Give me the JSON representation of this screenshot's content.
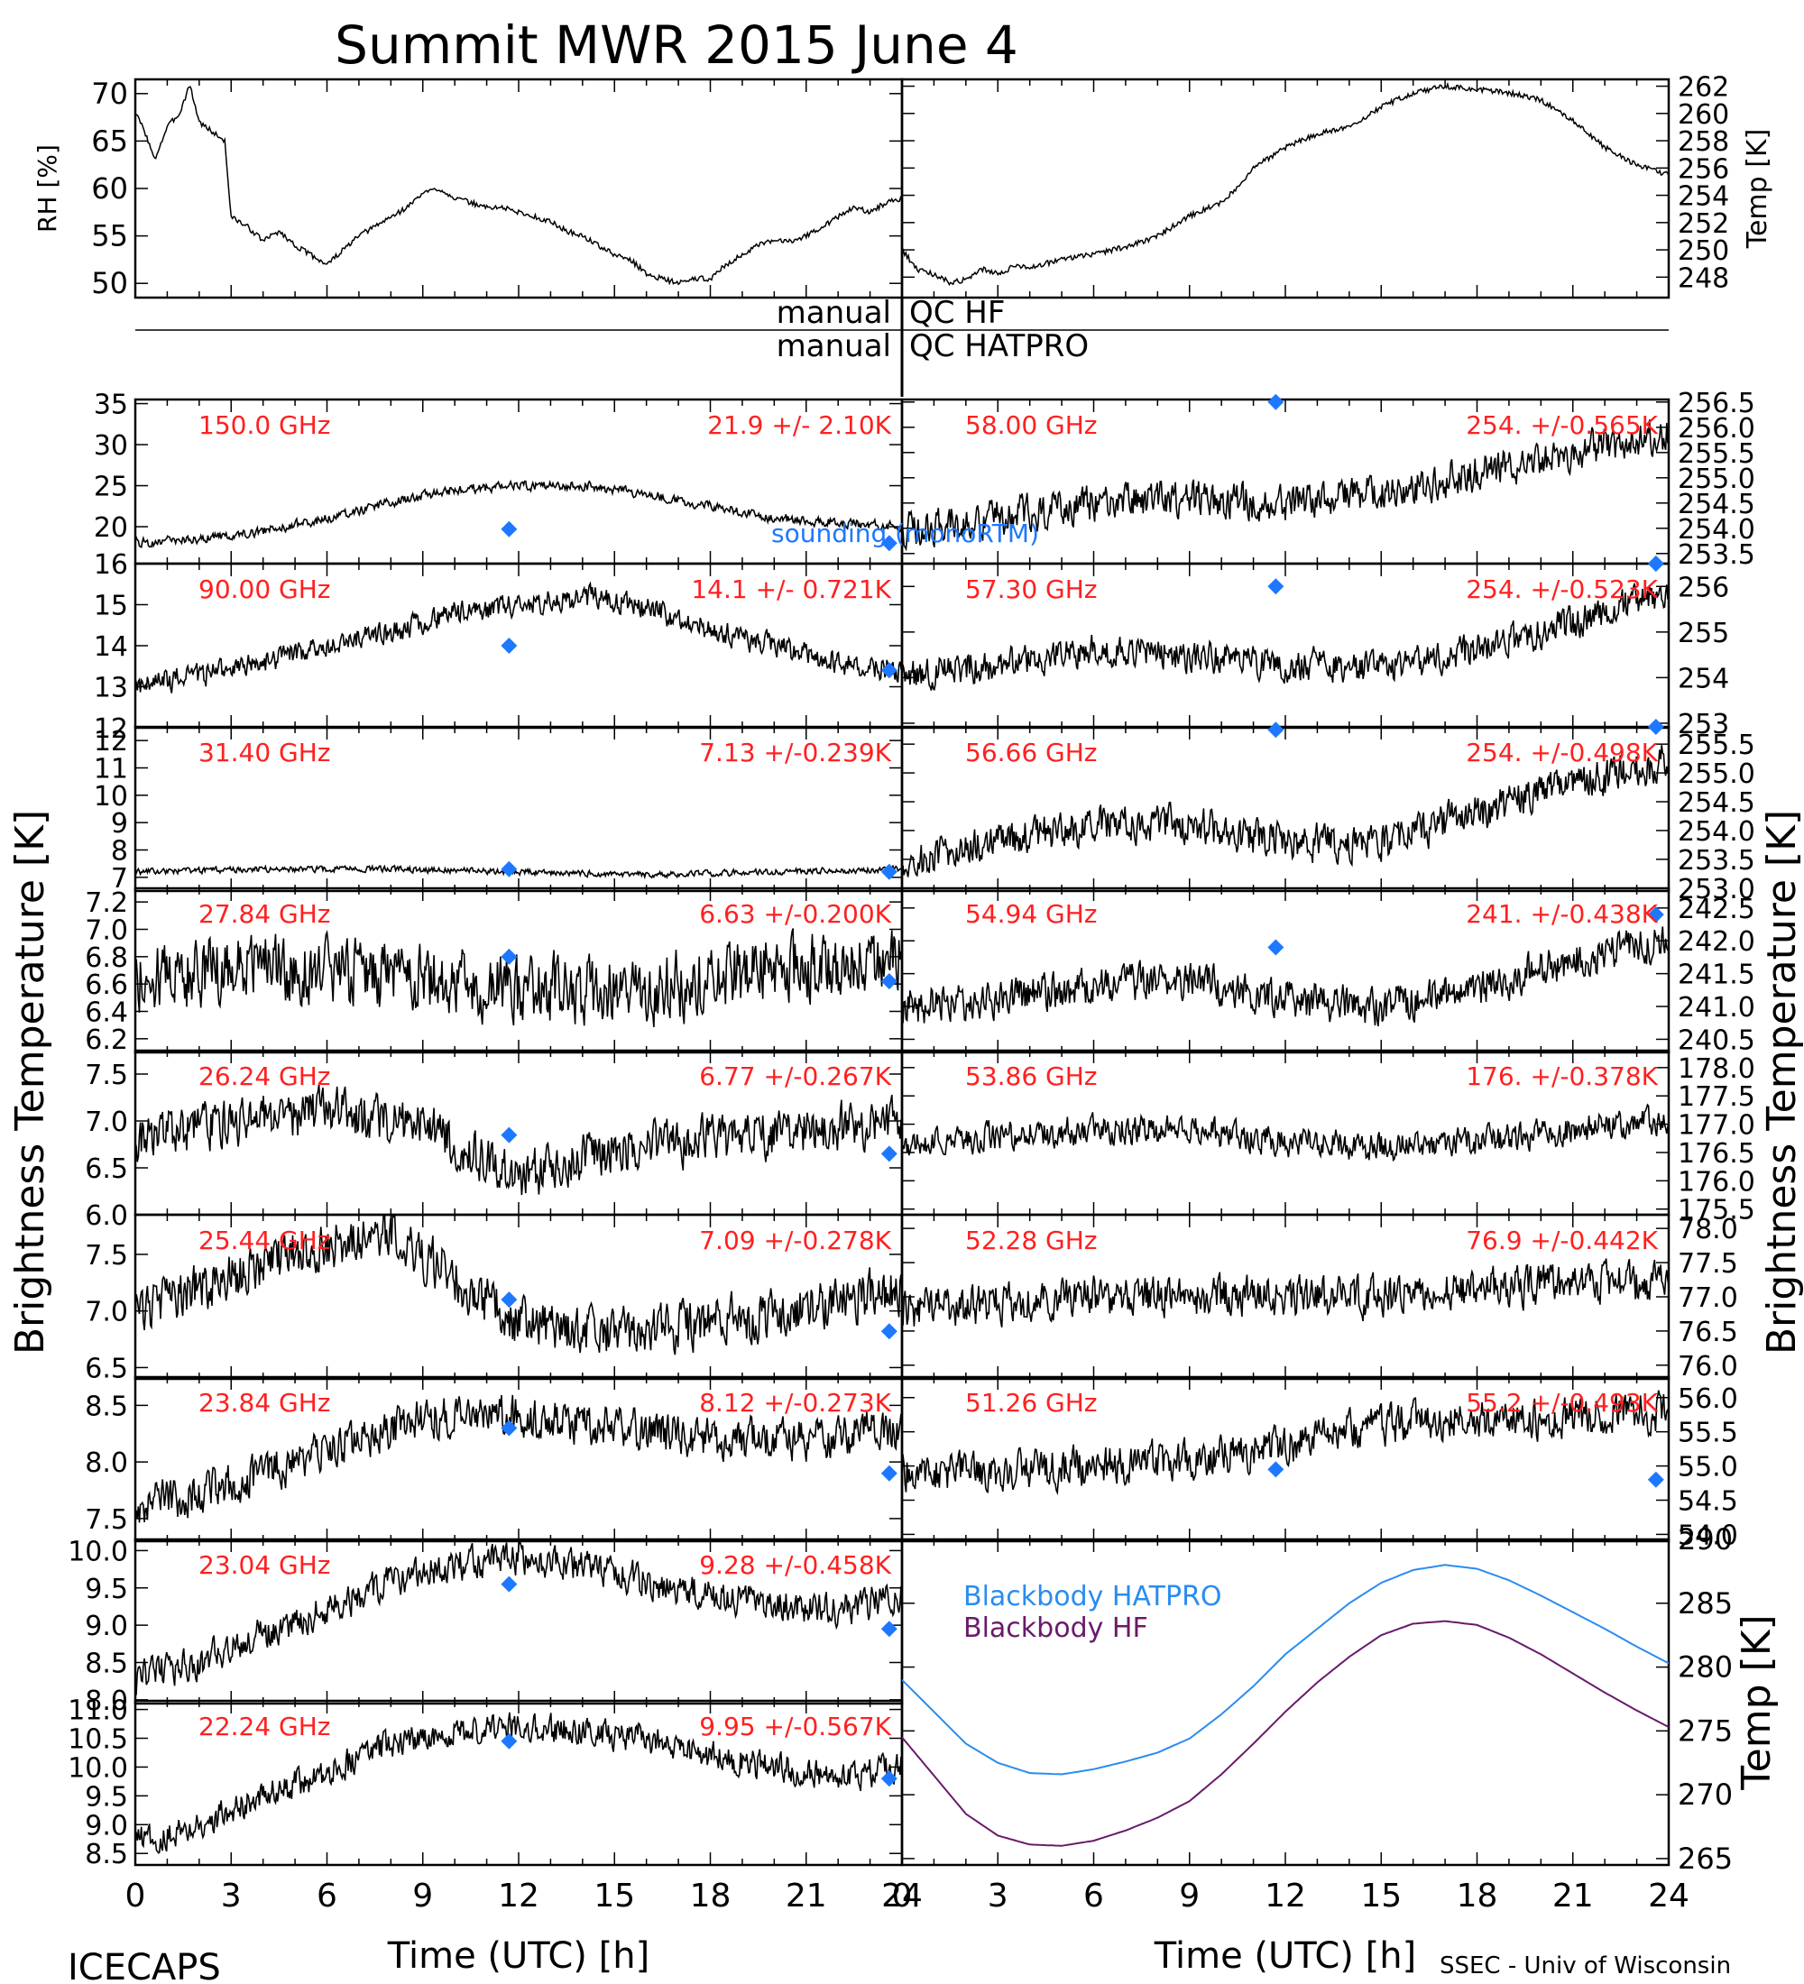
{
  "title": "Summit MWR 2015 June  4",
  "footer": {
    "left": "ICECAPS",
    "right": "SSEC - Univ of Wisconsin",
    "xlabel": "Time (UTC) [h]"
  },
  "qc_labels": {
    "hf_left": "manual",
    "hf_right": "QC HF",
    "hatpro_left": "manual",
    "hatpro_right": "QC HATPRO"
  },
  "side_labels": {
    "left": "Brightness Temperature [K]",
    "right": "Brightness Temperature [K]"
  },
  "legend": {
    "sounding": "sounding (monoRTM)",
    "bb_hatpro": "Blackbody HATPRO",
    "bb_hf": "Blackbody HF"
  },
  "colors": {
    "channel_label": "#ff2020",
    "sounding": "#1e78ff",
    "bb_hatpro": "#2a8cf0",
    "bb_hf": "#6a1a6a",
    "trace": "#000000"
  },
  "chart_data": [
    {
      "id": "rh",
      "type": "line",
      "ylabel": "RH [%]",
      "xlim": [
        0,
        24
      ],
      "ylim": [
        48.5,
        71.5
      ],
      "yticks": [
        "50",
        "55",
        "60",
        "65",
        "70"
      ],
      "ytick_vals": [
        50,
        55,
        60,
        65,
        70
      ],
      "x": [
        0,
        0.3,
        0.6,
        1,
        1.4,
        1.7,
        2,
        2.4,
        2.8,
        3,
        3.5,
        4,
        4.5,
        5,
        5.5,
        6,
        6.5,
        7,
        7.5,
        8,
        8.5,
        9,
        9.5,
        10,
        10.5,
        11,
        11.5,
        12,
        12.5,
        13,
        13.5,
        14,
        14.5,
        15,
        15.5,
        16,
        16.5,
        17,
        17.5,
        18,
        18.5,
        19,
        19.5,
        20,
        20.5,
        21,
        21.5,
        22,
        22.5,
        23,
        23.5,
        24
      ],
      "y": [
        68,
        66,
        63,
        66.5,
        68,
        71,
        67,
        66,
        65,
        57,
        56,
        54.5,
        55.5,
        54,
        53,
        52,
        53.5,
        55,
        56,
        57,
        58,
        59.5,
        60,
        59,
        58.5,
        58,
        58,
        57.5,
        57,
        56.5,
        55.5,
        55,
        54,
        53,
        52.5,
        51,
        50.5,
        50,
        50.5,
        50.5,
        52,
        53,
        54,
        54.5,
        54.5,
        55,
        56,
        57,
        58,
        57.5,
        58.5,
        59
      ]
    },
    {
      "id": "temp",
      "type": "line",
      "ylabel": "Temp [K]",
      "xlim": [
        0,
        24
      ],
      "ylim": [
        246.5,
        262.5
      ],
      "yticks": [
        "248",
        "250",
        "252",
        "254",
        "256",
        "258",
        "260",
        "262"
      ],
      "ytick_vals": [
        248,
        250,
        252,
        254,
        256,
        258,
        260,
        262
      ],
      "x": [
        0,
        0.5,
        1,
        1.5,
        2,
        2.5,
        3,
        3.5,
        4,
        5,
        6,
        7,
        8,
        9,
        10,
        10.5,
        11,
        12,
        13,
        14,
        15,
        16,
        17,
        18,
        19,
        20,
        20.5,
        21,
        22,
        23,
        24
      ],
      "y": [
        250,
        248.5,
        248.2,
        247.6,
        247.8,
        248.6,
        248.2,
        248.8,
        248.7,
        249.3,
        249.7,
        250.2,
        251,
        252.5,
        253.5,
        254.5,
        256,
        257.5,
        258.5,
        259,
        260.5,
        261.5,
        262,
        261.8,
        261.5,
        261,
        260.2,
        259.5,
        257.5,
        256.2,
        255.5
      ]
    },
    {
      "id": "f150",
      "label": "150.0 GHz",
      "stat": "21.9 +/-  2.10K",
      "type": "scatter",
      "ylim": [
        15.5,
        35.5
      ],
      "yticks": [
        "20",
        "25",
        "30",
        "35"
      ],
      "ytick_vals": [
        20,
        25,
        30,
        35
      ],
      "x": [
        0,
        2,
        4,
        6,
        8,
        10,
        12,
        14,
        16,
        18,
        20,
        22,
        24
      ],
      "y": [
        18,
        18.5,
        19.5,
        21,
        23,
        24.5,
        25,
        25,
        24,
        22.5,
        21,
        20.5,
        20
      ],
      "noise": 0.8,
      "sounding": [
        {
          "x": 11.7,
          "y": 19.7
        },
        {
          "x": 23.6,
          "y": 18.0
        }
      ]
    },
    {
      "id": "f90",
      "label": "90.00 GHz",
      "stat": "14.1 +/- 0.721K",
      "type": "scatter",
      "ylim": [
        12,
        16
      ],
      "yticks": [
        "12",
        "13",
        "14",
        "15",
        "16"
      ],
      "ytick_vals": [
        12,
        13,
        14,
        15,
        16
      ],
      "x": [
        0,
        2,
        4,
        6,
        8,
        10,
        12,
        14,
        16,
        18,
        20,
        22,
        24
      ],
      "y": [
        13,
        13.3,
        13.6,
        14,
        14.3,
        14.8,
        15,
        15.2,
        14.9,
        14.4,
        14,
        13.6,
        13.4
      ],
      "noise": 0.4,
      "sounding": [
        {
          "x": 11.7,
          "y": 14.0
        },
        {
          "x": 23.6,
          "y": 13.4
        }
      ]
    },
    {
      "id": "f314",
      "label": "31.40 GHz",
      "stat": "7.13 +/-0.239K",
      "type": "scatter",
      "ylim": [
        6.5,
        12.5
      ],
      "yticks": [
        "7",
        "8",
        "9",
        "10",
        "11",
        "12"
      ],
      "ytick_vals": [
        7,
        8,
        9,
        10,
        11,
        12
      ],
      "x": [
        0,
        4,
        8,
        12,
        16,
        20,
        24
      ],
      "y": [
        7.2,
        7.3,
        7.3,
        7.2,
        7.1,
        7.2,
        7.3
      ],
      "noise": 0.15,
      "sounding": [
        {
          "x": 11.7,
          "y": 7.3
        },
        {
          "x": 23.6,
          "y": 7.2
        }
      ]
    },
    {
      "id": "f2784",
      "label": "27.84 GHz",
      "stat": "6.63 +/-0.200K",
      "type": "scatter",
      "ylim": [
        6.1,
        7.3
      ],
      "yticks": [
        "6.2",
        "6.4",
        "6.6",
        "6.8",
        "7.0",
        "7.2"
      ],
      "ytick_vals": [
        6.2,
        6.4,
        6.6,
        6.8,
        7.0,
        7.2
      ],
      "x": [
        0,
        4,
        8,
        12,
        16,
        20,
        24
      ],
      "y": [
        6.65,
        6.75,
        6.65,
        6.55,
        6.55,
        6.7,
        6.8
      ],
      "noise": 0.35,
      "sounding": [
        {
          "x": 11.7,
          "y": 6.8
        },
        {
          "x": 23.6,
          "y": 6.62
        }
      ]
    },
    {
      "id": "f2624",
      "label": "26.24 GHz",
      "stat": "6.77 +/-0.267K",
      "type": "scatter",
      "ylim": [
        6.0,
        7.75
      ],
      "yticks": [
        "6.0",
        "6.5",
        "7.0",
        "7.5"
      ],
      "ytick_vals": [
        6.0,
        6.5,
        7.0,
        7.5
      ],
      "x": [
        0,
        3,
        6,
        9,
        12,
        15,
        18,
        21,
        24
      ],
      "y": [
        6.8,
        7.0,
        7.1,
        6.95,
        6.4,
        6.7,
        6.8,
        6.9,
        7.0
      ],
      "noise": 0.35,
      "sounding": [
        {
          "x": 11.7,
          "y": 6.85
        },
        {
          "x": 23.6,
          "y": 6.65
        }
      ]
    },
    {
      "id": "f2544",
      "label": "25.44 GHz",
      "stat": "7.09 +/-0.278K",
      "type": "scatter",
      "ylim": [
        6.4,
        7.85
      ],
      "yticks": [
        "6.5",
        "7.0",
        "7.5"
      ],
      "ytick_vals": [
        6.5,
        7.0,
        7.5
      ],
      "x": [
        0,
        3,
        6,
        8,
        10,
        12,
        15,
        18,
        21,
        24
      ],
      "y": [
        7.0,
        7.3,
        7.6,
        7.7,
        7.3,
        6.9,
        6.8,
        6.9,
        7.0,
        7.2
      ],
      "noise": 0.3,
      "sounding": [
        {
          "x": 11.7,
          "y": 7.1
        },
        {
          "x": 23.6,
          "y": 6.82
        }
      ]
    },
    {
      "id": "f2384",
      "label": "23.84 GHz",
      "stat": "8.12 +/-0.273K",
      "type": "scatter",
      "ylim": [
        7.3,
        8.75
      ],
      "yticks": [
        "7.5",
        "8.0",
        "8.5"
      ],
      "ytick_vals": [
        7.5,
        8.0,
        8.5
      ],
      "x": [
        0,
        3,
        6,
        9,
        12,
        15,
        18,
        21,
        24
      ],
      "y": [
        7.6,
        7.8,
        8.1,
        8.4,
        8.4,
        8.3,
        8.2,
        8.2,
        8.3
      ],
      "noise": 0.25,
      "sounding": [
        {
          "x": 11.7,
          "y": 8.3
        },
        {
          "x": 23.6,
          "y": 7.9
        }
      ]
    },
    {
      "id": "f2304",
      "label": "23.04 GHz",
      "stat": "9.28 +/-0.458K",
      "type": "scatter",
      "ylim": [
        7.95,
        10.15
      ],
      "yticks": [
        "8.0",
        "8.5",
        "9.0",
        "9.5",
        "10.0"
      ],
      "ytick_vals": [
        8.0,
        8.5,
        9.0,
        9.5,
        10.0
      ],
      "x": [
        0,
        2,
        4,
        6,
        8,
        10,
        12,
        14,
        16,
        18,
        20,
        22,
        24
      ],
      "y": [
        8.3,
        8.5,
        8.9,
        9.2,
        9.6,
        9.8,
        9.9,
        9.8,
        9.6,
        9.4,
        9.3,
        9.2,
        9.4
      ],
      "noise": 0.3,
      "sounding": [
        {
          "x": 11.7,
          "y": 9.55
        },
        {
          "x": 23.6,
          "y": 8.95
        }
      ]
    },
    {
      "id": "f2224",
      "label": "22.24 GHz",
      "stat": "9.95 +/-0.567K",
      "type": "scatter",
      "ylim": [
        8.3,
        11.15
      ],
      "yticks": [
        "8.5",
        "9.0",
        "9.5",
        "10.0",
        "10.5",
        "11.0"
      ],
      "ytick_vals": [
        8.5,
        9.0,
        9.5,
        10.0,
        10.5,
        11.0
      ],
      "x": [
        0,
        2,
        4,
        6,
        8,
        10,
        12,
        14,
        16,
        18,
        20,
        22,
        24
      ],
      "y": [
        8.7,
        9.0,
        9.5,
        9.9,
        10.4,
        10.6,
        10.7,
        10.6,
        10.5,
        10.2,
        10.0,
        9.8,
        10.0
      ],
      "noise": 0.35,
      "sounding": [
        {
          "x": 11.7,
          "y": 10.45
        },
        {
          "x": 23.6,
          "y": 9.8
        }
      ]
    },
    {
      "id": "f5800",
      "label": "58.00 GHz",
      "stat": "254. +/-0.565K",
      "type": "scatter",
      "ylim": [
        253.3,
        256.55
      ],
      "yticks": [
        "253.5",
        "254.0",
        "254.5",
        "255.0",
        "255.5",
        "256.0",
        "256.5"
      ],
      "ytick_vals": [
        253.5,
        254.0,
        254.5,
        255.0,
        255.5,
        256.0,
        256.5
      ],
      "x": [
        0,
        3,
        6,
        9,
        12,
        15,
        18,
        21,
        24
      ],
      "y": [
        254.0,
        254.2,
        254.5,
        254.6,
        254.5,
        254.7,
        255.1,
        255.5,
        255.9
      ],
      "noise": 0.5,
      "sounding": [
        {
          "x": 11.7,
          "y": 256.5
        },
        {
          "x": 23.6,
          "y": 253.3
        }
      ]
    },
    {
      "id": "f5730",
      "label": "57.30 GHz",
      "stat": "254. +/-0.523K",
      "type": "scatter",
      "ylim": [
        252.9,
        256.5
      ],
      "yticks": [
        "253",
        "254",
        "255",
        "256"
      ],
      "ytick_vals": [
        253,
        254,
        255,
        256
      ],
      "x": [
        0,
        3,
        6,
        9,
        12,
        15,
        18,
        21,
        24
      ],
      "y": [
        254.0,
        254.3,
        254.6,
        254.5,
        254.3,
        254.2,
        254.6,
        255.2,
        255.9
      ],
      "noise": 0.5,
      "sounding": [
        {
          "x": 11.7,
          "y": 256.0
        },
        {
          "x": 23.6,
          "y": 256.5
        }
      ]
    },
    {
      "id": "f5666",
      "label": "56.66 GHz",
      "stat": "254. +/-0.498K",
      "type": "scatter",
      "ylim": [
        252.95,
        255.8
      ],
      "yticks": [
        "253.0",
        "253.5",
        "254.0",
        "254.5",
        "255.0",
        "255.5"
      ],
      "ytick_vals": [
        253.0,
        253.5,
        254.0,
        254.5,
        255.0,
        255.5
      ],
      "x": [
        0,
        3,
        6,
        9,
        12,
        15,
        18,
        21,
        24
      ],
      "y": [
        253.4,
        253.8,
        254.1,
        254.1,
        253.8,
        253.8,
        254.3,
        254.8,
        255.2
      ],
      "noise": 0.45,
      "sounding": [
        {
          "x": 11.7,
          "y": 255.75
        },
        {
          "x": 23.6,
          "y": 255.8
        }
      ]
    },
    {
      "id": "f5494",
      "label": "54.94 GHz",
      "stat": "241. +/-0.438K",
      "type": "scatter",
      "ylim": [
        240.3,
        242.8
      ],
      "yticks": [
        "240.5",
        "241.0",
        "241.5",
        "242.0",
        "242.5"
      ],
      "ytick_vals": [
        240.5,
        241.0,
        241.5,
        242.0,
        242.5
      ],
      "x": [
        0,
        3,
        6,
        9,
        12,
        15,
        18,
        21,
        24
      ],
      "y": [
        241.0,
        241.1,
        241.3,
        241.4,
        241.1,
        241.0,
        241.3,
        241.7,
        242.0
      ],
      "noise": 0.4,
      "sounding": [
        {
          "x": 11.7,
          "y": 241.9
        },
        {
          "x": 23.6,
          "y": 242.4
        }
      ]
    },
    {
      "id": "f5386",
      "label": "53.86 GHz",
      "stat": "176. +/-0.378K",
      "type": "scatter",
      "ylim": [
        175.4,
        178.3
      ],
      "yticks": [
        "175.5",
        "176.0",
        "176.5",
        "177.0",
        "177.5",
        "178.0"
      ],
      "ytick_vals": [
        175.5,
        176.0,
        176.5,
        177.0,
        177.5,
        178.0
      ],
      "x": [
        0,
        3,
        6,
        9,
        12,
        15,
        18,
        21,
        24
      ],
      "y": [
        176.6,
        176.8,
        176.9,
        176.9,
        176.7,
        176.6,
        176.7,
        176.9,
        177.1
      ],
      "noise": 0.35,
      "sounding": []
    },
    {
      "id": "f5228",
      "label": "52.28 GHz",
      "stat": "76.9 +/-0.442K",
      "type": "scatter",
      "ylim": [
        75.8,
        78.2
      ],
      "yticks": [
        "76.0",
        "76.5",
        "77.0",
        "77.5",
        "78.0"
      ],
      "ytick_vals": [
        76.0,
        76.5,
        77.0,
        77.5,
        78.0
      ],
      "x": [
        0,
        3,
        6,
        9,
        12,
        15,
        18,
        21,
        24
      ],
      "y": [
        76.8,
        76.9,
        77.0,
        77.0,
        77.0,
        77.0,
        77.1,
        77.2,
        77.2
      ],
      "noise": 0.4,
      "sounding": []
    },
    {
      "id": "f5126",
      "label": "51.26 GHz",
      "stat": "55.2 +/-0.493K",
      "type": "scatter",
      "ylim": [
        53.9,
        56.3
      ],
      "yticks": [
        "54.0",
        "54.5",
        "55.0",
        "55.5",
        "56.0"
      ],
      "ytick_vals": [
        54.0,
        54.5,
        55.0,
        55.5,
        56.0
      ],
      "x": [
        0,
        3,
        6,
        9,
        12,
        15,
        18,
        21,
        24
      ],
      "y": [
        54.9,
        54.9,
        55.0,
        55.1,
        55.3,
        55.6,
        55.7,
        55.7,
        55.8
      ],
      "noise": 0.4,
      "sounding": [
        {
          "x": 11.7,
          "y": 54.95
        },
        {
          "x": 23.6,
          "y": 54.8
        }
      ]
    },
    {
      "id": "bb",
      "type": "line",
      "ylabel": "Temp [K]",
      "xlim": [
        0,
        24
      ],
      "ylim": [
        264.5,
        290
      ],
      "yticks": [
        "265",
        "270",
        "275",
        "280",
        "285",
        "290"
      ],
      "ytick_vals": [
        265,
        270,
        275,
        280,
        285,
        290
      ],
      "series": [
        {
          "name": "Blackbody HATPRO",
          "x": [
            0,
            1,
            2,
            3,
            4,
            5,
            6,
            7,
            8,
            9,
            10,
            11,
            12,
            13,
            14,
            15,
            16,
            17,
            18,
            19,
            20,
            21,
            22,
            23,
            24
          ],
          "y": [
            279,
            276.5,
            274,
            272.5,
            271.7,
            271.6,
            272,
            272.6,
            273.3,
            274.4,
            276.3,
            278.5,
            281,
            283,
            285,
            286.6,
            287.6,
            288,
            287.7,
            286.8,
            285.6,
            284.3,
            283,
            281.6,
            280.3
          ]
        },
        {
          "name": "Blackbody HF",
          "x": [
            0,
            1,
            2,
            3,
            4,
            5,
            6,
            7,
            8,
            9,
            10,
            11,
            12,
            13,
            14,
            15,
            16,
            17,
            18,
            19,
            20,
            21,
            22,
            23,
            24
          ],
          "y": [
            274.5,
            271.5,
            268.5,
            266.8,
            266.1,
            266,
            266.4,
            267.2,
            268.2,
            269.5,
            271.6,
            274,
            276.5,
            278.8,
            280.8,
            282.5,
            283.4,
            283.6,
            283.3,
            282.3,
            281,
            279.5,
            278,
            276.6,
            275.3
          ]
        }
      ]
    }
  ]
}
